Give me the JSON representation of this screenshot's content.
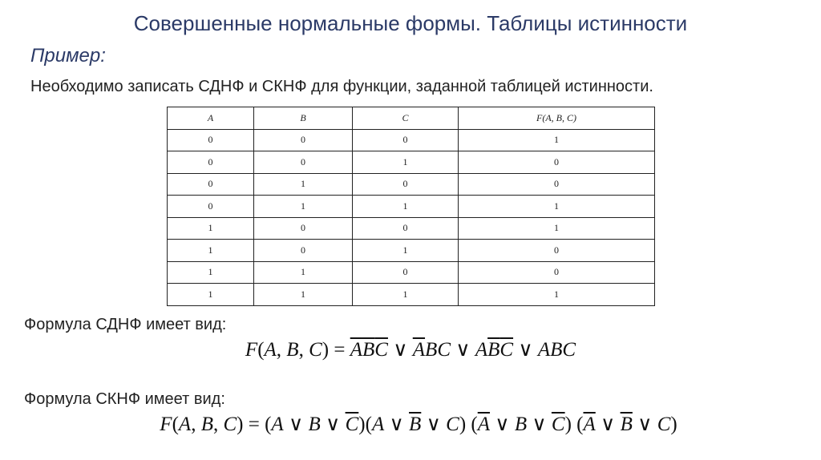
{
  "slide": {
    "title": "Совершенные нормальные формы. Таблицы истинности",
    "subtitle": "Пример:",
    "intro": "Необходимо записать СДНФ и СКНФ для функции, заданной таблицей истинности."
  },
  "truth_table": {
    "headers": [
      "A",
      "B",
      "C",
      "F(A, B, C)"
    ],
    "rows": [
      [
        "0",
        "0",
        "0",
        "1"
      ],
      [
        "0",
        "0",
        "1",
        "0"
      ],
      [
        "0",
        "1",
        "0",
        "0"
      ],
      [
        "0",
        "1",
        "1",
        "1"
      ],
      [
        "1",
        "0",
        "0",
        "1"
      ],
      [
        "1",
        "0",
        "1",
        "0"
      ],
      [
        "1",
        "1",
        "0",
        "0"
      ],
      [
        "1",
        "1",
        "1",
        "1"
      ]
    ]
  },
  "sdnf": {
    "label": "Формула СДНФ имеет вид:",
    "formula_text": "F(A,B,C) = ¬A¬B¬C ∨ ¬ABC ∨ A¬B¬C ∨ ABC",
    "tokens": [
      {
        "t": "F",
        "v": true
      },
      {
        "t": "("
      },
      {
        "t": "A",
        "v": true
      },
      {
        "t": ", "
      },
      {
        "t": "B",
        "v": true
      },
      {
        "t": ", "
      },
      {
        "t": "C",
        "v": true
      },
      {
        "t": ") = "
      },
      {
        "t": "A",
        "v": true,
        "bar": true
      },
      {
        "t": "B",
        "v": true,
        "bar": true
      },
      {
        "t": "C",
        "v": true,
        "bar": true
      },
      {
        "t": " ∨ "
      },
      {
        "t": "A",
        "v": true,
        "bar": true
      },
      {
        "t": "BC",
        "v": true
      },
      {
        "t": " ∨ "
      },
      {
        "t": "A",
        "v": true
      },
      {
        "t": "B",
        "v": true,
        "bar": true
      },
      {
        "t": "C",
        "v": true,
        "bar": true
      },
      {
        "t": " ∨ "
      },
      {
        "t": "ABC",
        "v": true
      }
    ]
  },
  "sknf": {
    "label": "Формула СКНФ имеет вид:",
    "formula_text": "F(A,B,C) = (A ∨ B ∨ ¬C)(A ∨ ¬B ∨ C) (¬A ∨ B ∨ ¬C) (¬A ∨ ¬B ∨ C)",
    "tokens": [
      {
        "t": "F",
        "v": true
      },
      {
        "t": "("
      },
      {
        "t": "A",
        "v": true
      },
      {
        "t": ", "
      },
      {
        "t": "B",
        "v": true
      },
      {
        "t": ", "
      },
      {
        "t": "C",
        "v": true
      },
      {
        "t": ") = ("
      },
      {
        "t": "A",
        "v": true
      },
      {
        "t": " ∨ "
      },
      {
        "t": "B",
        "v": true
      },
      {
        "t": " ∨ "
      },
      {
        "t": "C",
        "v": true,
        "bar": true
      },
      {
        "t": ")("
      },
      {
        "t": "A",
        "v": true
      },
      {
        "t": " ∨ "
      },
      {
        "t": "B",
        "v": true,
        "bar": true
      },
      {
        "t": " ∨ "
      },
      {
        "t": "C",
        "v": true
      },
      {
        "t": ") ("
      },
      {
        "t": "A",
        "v": true,
        "bar": true
      },
      {
        "t": " ∨ "
      },
      {
        "t": "B",
        "v": true
      },
      {
        "t": " ∨ "
      },
      {
        "t": "C",
        "v": true,
        "bar": true
      },
      {
        "t": ") ("
      },
      {
        "t": "A",
        "v": true,
        "bar": true
      },
      {
        "t": " ∨ "
      },
      {
        "t": "B",
        "v": true,
        "bar": true
      },
      {
        "t": " ∨ "
      },
      {
        "t": "C",
        "v": true
      },
      {
        "t": ")"
      }
    ]
  },
  "colors": {
    "title": "#2b3a67",
    "text": "#222222"
  }
}
